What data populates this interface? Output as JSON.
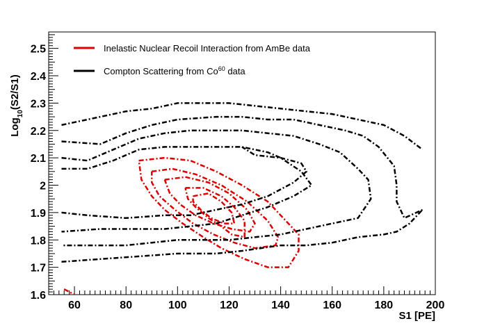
{
  "chart_data": {
    "type": "contour",
    "xlabel": "S1 [PE]",
    "ylabel": "Log",
    "ylabel_sub": "10",
    "ylabel_suffix": "(S2/S1)",
    "xlim": [
      50,
      200
    ],
    "ylim": [
      1.6,
      2.56
    ],
    "x_ticks": [
      60,
      80,
      100,
      120,
      140,
      160,
      180,
      200
    ],
    "y_ticks": [
      1.6,
      1.7,
      1.8,
      1.9,
      2.0,
      2.1,
      2.2,
      2.3,
      2.4,
      2.5
    ],
    "x_tick_labels": [
      "60",
      "80",
      "100",
      "120",
      "140",
      "160",
      "180",
      "200"
    ],
    "y_tick_labels": [
      "1.6",
      "1.7",
      "1.8",
      "1.9",
      "2",
      "2.1",
      "2.2",
      "2.3",
      "2.4",
      "2.5"
    ],
    "legend": {
      "placement": "top-left",
      "entries": [
        {
          "label": "Inelastic Nuclear Recoil Interaction from AmBe data",
          "color": "#dd0000"
        },
        {
          "label_before": "Compton Scattering from Co",
          "label_sup": "60",
          "label_after": " data",
          "color": "#000000"
        }
      ]
    },
    "series": [
      {
        "name": "Inelastic Nuclear Recoil Interaction from AmBe data",
        "color": "#dd0000",
        "contours": [
          [
            [
              85,
              2.09
            ],
            [
              95,
              2.1
            ],
            [
              105,
              2.09
            ],
            [
              115,
              2.05
            ],
            [
              125,
              2.0
            ],
            [
              135,
              1.94
            ],
            [
              142,
              1.87
            ],
            [
              147,
              1.82
            ],
            [
              147,
              1.76
            ],
            [
              143,
              1.7
            ],
            [
              135,
              1.7
            ],
            [
              126,
              1.73
            ],
            [
              117,
              1.77
            ],
            [
              110,
              1.81
            ],
            [
              102,
              1.86
            ],
            [
              95,
              1.91
            ],
            [
              90,
              1.96
            ],
            [
              86,
              2.02
            ],
            [
              85,
              2.09
            ]
          ],
          [
            [
              90,
              2.05
            ],
            [
              98,
              2.06
            ],
            [
              107,
              2.04
            ],
            [
              117,
              2.0
            ],
            [
              127,
              1.94
            ],
            [
              135,
              1.87
            ],
            [
              139,
              1.81
            ],
            [
              138,
              1.78
            ],
            [
              130,
              1.77
            ],
            [
              122,
              1.79
            ],
            [
              114,
              1.82
            ],
            [
              106,
              1.86
            ],
            [
              99,
              1.91
            ],
            [
              93,
              1.96
            ],
            [
              90,
              2.01
            ],
            [
              90,
              2.05
            ]
          ],
          [
            [
              95,
              2.02
            ],
            [
              103,
              2.03
            ],
            [
              112,
              2.01
            ],
            [
              120,
              1.97
            ],
            [
              127,
              1.91
            ],
            [
              130,
              1.86
            ],
            [
              128,
              1.83
            ],
            [
              121,
              1.84
            ],
            [
              114,
              1.86
            ],
            [
              107,
              1.89
            ],
            [
              101,
              1.93
            ],
            [
              97,
              1.97
            ],
            [
              95,
              2.02
            ]
          ],
          [
            [
              103,
              1.99
            ],
            [
              110,
              1.99
            ],
            [
              117,
              1.96
            ],
            [
              122,
              1.92
            ],
            [
              126,
              1.87
            ],
            [
              126,
              1.81
            ],
            [
              121,
              1.82
            ],
            [
              117,
              1.85
            ],
            [
              112,
              1.88
            ],
            [
              107,
              1.92
            ],
            [
              104,
              1.95
            ],
            [
              103,
              1.99
            ]
          ],
          [
            [
              106,
              1.96
            ],
            [
              112,
              1.97
            ],
            [
              117,
              1.94
            ],
            [
              121,
              1.9
            ],
            [
              122,
              1.86
            ],
            [
              118,
              1.86
            ],
            [
              113,
              1.88
            ],
            [
              109,
              1.91
            ],
            [
              106,
              1.94
            ],
            [
              106,
              1.96
            ]
          ],
          [
            [
              56,
              1.62
            ],
            [
              60,
              1.6
            ]
          ]
        ]
      },
      {
        "name": "Compton Scattering from Co60 data",
        "color": "#000000",
        "contours": [
          [
            [
              55,
              2.22
            ],
            [
              70,
              2.25
            ],
            [
              80,
              2.27
            ],
            [
              90,
              2.28
            ],
            [
              100,
              2.3
            ],
            [
              110,
              2.3
            ],
            [
              120,
              2.3
            ],
            [
              130,
              2.29
            ],
            [
              140,
              2.28
            ],
            [
              150,
              2.27
            ],
            [
              160,
              2.26
            ],
            [
              170,
              2.24
            ],
            [
              180,
              2.22
            ],
            [
              188,
              2.18
            ],
            [
              195,
              2.13
            ]
          ],
          [
            [
              55,
              2.16
            ],
            [
              70,
              2.15
            ],
            [
              80,
              2.19
            ],
            [
              90,
              2.22
            ],
            [
              100,
              2.24
            ],
            [
              115,
              2.25
            ],
            [
              125,
              2.25
            ],
            [
              135,
              2.24
            ],
            [
              145,
              2.24
            ],
            [
              155,
              2.22
            ],
            [
              165,
              2.2
            ],
            [
              172,
              2.18
            ],
            [
              178,
              2.14
            ],
            [
              184,
              2.07
            ],
            [
              185,
              2.0
            ],
            [
              185,
              1.94
            ],
            [
              188,
              1.88
            ],
            [
              195,
              1.91
            ]
          ],
          [
            [
              55,
              2.1
            ],
            [
              65,
              2.09
            ],
            [
              75,
              2.13
            ],
            [
              85,
              2.17
            ],
            [
              95,
              2.19
            ],
            [
              105,
              2.2
            ],
            [
              115,
              2.2
            ],
            [
              125,
              2.2
            ],
            [
              135,
              2.19
            ],
            [
              145,
              2.18
            ],
            [
              155,
              2.15
            ],
            [
              163,
              2.12
            ],
            [
              170,
              2.06
            ],
            [
              174,
              2.02
            ],
            [
              175,
              1.95
            ],
            [
              170,
              1.88
            ],
            [
              160,
              1.86
            ],
            [
              150,
              1.84
            ],
            [
              140,
              1.82
            ],
            [
              130,
              1.81
            ],
            [
              120,
              1.8
            ],
            [
              110,
              1.8
            ],
            [
              100,
              1.8
            ],
            [
              90,
              1.79
            ],
            [
              80,
              1.78
            ],
            [
              70,
              1.78
            ],
            [
              55,
              1.78
            ]
          ],
          [
            [
              55,
              2.06
            ],
            [
              65,
              2.06
            ],
            [
              75,
              2.09
            ],
            [
              85,
              2.13
            ],
            [
              95,
              2.14
            ],
            [
              105,
              2.14
            ],
            [
              115,
              2.14
            ],
            [
              125,
              2.14
            ],
            [
              135,
              2.12
            ],
            [
              140,
              2.1
            ],
            [
              148,
              2.05
            ],
            [
              152,
              2.0
            ],
            [
              145,
              1.96
            ],
            [
              135,
              1.92
            ],
            [
              125,
              1.89
            ],
            [
              115,
              1.86
            ],
            [
              105,
              1.85
            ],
            [
              95,
              1.84
            ],
            [
              85,
              1.84
            ],
            [
              70,
              1.84
            ],
            [
              55,
              1.83
            ]
          ],
          [
            [
              55,
              1.9
            ],
            [
              65,
              1.89
            ],
            [
              80,
              1.88
            ],
            [
              95,
              1.89
            ],
            [
              105,
              1.89
            ],
            [
              115,
              1.91
            ],
            [
              125,
              1.93
            ],
            [
              135,
              1.96
            ],
            [
              145,
              2.01
            ],
            [
              150,
              2.05
            ],
            [
              148,
              2.08
            ],
            [
              140,
              2.1
            ],
            [
              130,
              2.11
            ],
            [
              125,
              2.14
            ]
          ],
          [
            [
              55,
              1.72
            ],
            [
              70,
              1.73
            ],
            [
              85,
              1.74
            ],
            [
              100,
              1.75
            ],
            [
              115,
              1.75
            ],
            [
              125,
              1.76
            ],
            [
              140,
              1.78
            ],
            [
              150,
              1.78
            ],
            [
              160,
              1.79
            ],
            [
              170,
              1.81
            ],
            [
              180,
              1.82
            ],
            [
              185,
              1.83
            ],
            [
              190,
              1.86
            ],
            [
              195,
              1.91
            ]
          ]
        ]
      }
    ]
  }
}
